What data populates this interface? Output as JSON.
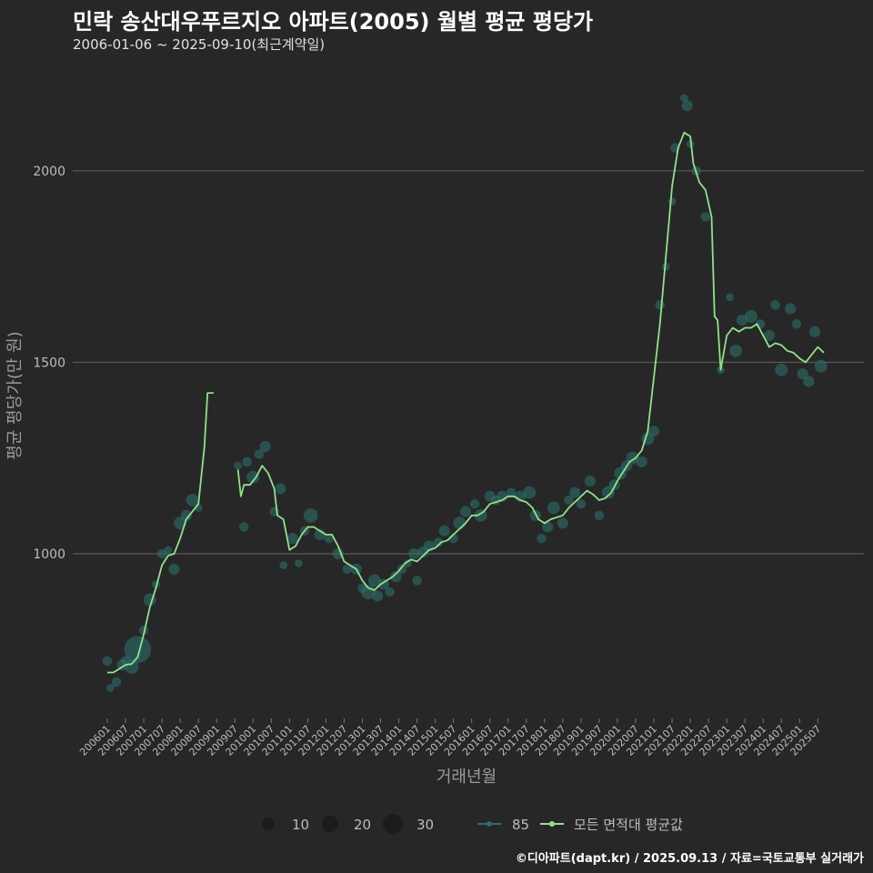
{
  "header": {
    "title": "민락 송산대우푸르지오 아파트(2005) 월별 평균 평당가",
    "subtitle": "2006-01-06 ~ 2025-09-10(최근계약일)"
  },
  "footer": {
    "credit": "©디아파트(dapt.kr) / 2025.09.13 / 자료=국토교통부 실거래가"
  },
  "colors": {
    "background": "#272727",
    "grid": "#555555",
    "line": "#8fe388",
    "points": "#2b6f6a"
  },
  "chart_data": {
    "type": "line",
    "xlabel": "거래년월",
    "ylabel": "평균 평당가(만 원)",
    "y_ticks": [
      1000,
      1500,
      2000
    ],
    "ylim": [
      570,
      2280
    ],
    "x_tick_labels": [
      "200601",
      "200607",
      "200701",
      "200707",
      "200801",
      "200807",
      "200901",
      "200907",
      "201001",
      "201007",
      "201101",
      "201107",
      "201201",
      "201207",
      "201301",
      "201307",
      "201401",
      "201407",
      "201501",
      "201507",
      "201601",
      "201607",
      "201701",
      "201707",
      "201801",
      "201807",
      "201901",
      "201907",
      "202001",
      "202007",
      "202101",
      "202107",
      "202201",
      "202207",
      "202301",
      "202307",
      "202401",
      "202407",
      "202501",
      "202507"
    ],
    "grid": true,
    "legend": {
      "size_title": "",
      "size_entries": [
        "10",
        "20",
        "30"
      ],
      "series_entries": [
        "85",
        "모든 면적대 평균값"
      ]
    },
    "series": [
      {
        "name": "모든 면적대 평균값",
        "segments": [
          [
            [
              "2006-01",
              690
            ],
            [
              "2006-03",
              690
            ],
            [
              "2006-05",
              700
            ],
            [
              "2006-07",
              710
            ],
            [
              "2006-09",
              712
            ],
            [
              "2006-11",
              730
            ],
            [
              "2007-01",
              790
            ],
            [
              "2007-03",
              860
            ],
            [
              "2007-05",
              910
            ],
            [
              "2007-07",
              970
            ],
            [
              "2007-09",
              995
            ],
            [
              "2007-11",
              1000
            ],
            [
              "2008-01",
              1040
            ],
            [
              "2008-03",
              1090
            ],
            [
              "2008-05",
              1110
            ],
            [
              "2008-07",
              1130
            ],
            [
              "2008-09",
              1280
            ],
            [
              "2008-10",
              1420
            ],
            [
              "2008-12",
              1420
            ]
          ],
          [
            [
              "2009-08",
              1220
            ],
            [
              "2009-09",
              1150
            ],
            [
              "2009-10",
              1180
            ],
            [
              "2009-12",
              1180
            ],
            [
              "2010-02",
              1200
            ],
            [
              "2010-04",
              1230
            ],
            [
              "2010-06",
              1210
            ],
            [
              "2010-08",
              1170
            ],
            [
              "2010-09",
              1100
            ],
            [
              "2010-11",
              1090
            ],
            [
              "2011-01",
              1010
            ],
            [
              "2011-03",
              1020
            ],
            [
              "2011-05",
              1050
            ],
            [
              "2011-07",
              1070
            ],
            [
              "2011-09",
              1070
            ],
            [
              "2011-11",
              1060
            ],
            [
              "2012-01",
              1050
            ],
            [
              "2012-03",
              1050
            ],
            [
              "2012-05",
              1020
            ],
            [
              "2012-07",
              980
            ],
            [
              "2012-09",
              970
            ],
            [
              "2012-11",
              960
            ],
            [
              "2013-01",
              930
            ],
            [
              "2013-03",
              910
            ],
            [
              "2013-05",
              905
            ],
            [
              "2013-07",
              920
            ],
            [
              "2013-09",
              930
            ],
            [
              "2013-11",
              940
            ],
            [
              "2014-01",
              955
            ],
            [
              "2014-03",
              975
            ],
            [
              "2014-05",
              985
            ],
            [
              "2014-07",
              980
            ],
            [
              "2014-09",
              995
            ],
            [
              "2014-11",
              1010
            ],
            [
              "2015-01",
              1015
            ],
            [
              "2015-03",
              1030
            ],
            [
              "2015-05",
              1035
            ],
            [
              "2015-07",
              1050
            ],
            [
              "2015-09",
              1065
            ],
            [
              "2015-11",
              1080
            ],
            [
              "2016-01",
              1100
            ],
            [
              "2016-03",
              1100
            ],
            [
              "2016-05",
              1110
            ],
            [
              "2016-07",
              1130
            ],
            [
              "2016-09",
              1135
            ],
            [
              "2016-11",
              1140
            ],
            [
              "2017-01",
              1150
            ],
            [
              "2017-03",
              1150
            ],
            [
              "2017-05",
              1140
            ],
            [
              "2017-07",
              1135
            ],
            [
              "2017-09",
              1120
            ],
            [
              "2017-11",
              1090
            ],
            [
              "2018-01",
              1080
            ],
            [
              "2018-03",
              1090
            ],
            [
              "2018-05",
              1095
            ],
            [
              "2018-07",
              1100
            ],
            [
              "2018-09",
              1120
            ],
            [
              "2018-11",
              1135
            ],
            [
              "2019-01",
              1150
            ],
            [
              "2019-03",
              1165
            ],
            [
              "2019-05",
              1155
            ],
            [
              "2019-07",
              1140
            ],
            [
              "2019-09",
              1145
            ],
            [
              "2019-11",
              1160
            ],
            [
              "2020-01",
              1190
            ],
            [
              "2020-03",
              1215
            ],
            [
              "2020-05",
              1240
            ],
            [
              "2020-07",
              1250
            ],
            [
              "2020-09",
              1270
            ],
            [
              "2020-11",
              1320
            ],
            [
              "2021-01",
              1460
            ],
            [
              "2021-03",
              1600
            ],
            [
              "2021-05",
              1780
            ],
            [
              "2021-07",
              1960
            ],
            [
              "2021-09",
              2060
            ],
            [
              "2021-11",
              2100
            ],
            [
              "2022-01",
              2090
            ],
            [
              "2022-02",
              2020
            ],
            [
              "2022-04",
              1970
            ],
            [
              "2022-06",
              1950
            ],
            [
              "2022-08",
              1880
            ],
            [
              "2022-09",
              1620
            ],
            [
              "2022-10",
              1610
            ],
            [
              "2022-11",
              1480
            ],
            [
              "2023-01",
              1570
            ],
            [
              "2023-03",
              1590
            ],
            [
              "2023-05",
              1580
            ],
            [
              "2023-07",
              1590
            ],
            [
              "2023-09",
              1590
            ],
            [
              "2023-11",
              1600
            ],
            [
              "2024-01",
              1570
            ],
            [
              "2024-03",
              1540
            ],
            [
              "2024-05",
              1550
            ],
            [
              "2024-07",
              1545
            ],
            [
              "2024-09",
              1530
            ],
            [
              "2024-11",
              1525
            ],
            [
              "2025-01",
              1510
            ],
            [
              "2025-03",
              1500
            ],
            [
              "2025-05",
              1520
            ],
            [
              "2025-07",
              1540
            ],
            [
              "2025-09",
              1525
            ]
          ]
        ]
      },
      {
        "name": "85",
        "points": [
          [
            "2006-01",
            720,
            12
          ],
          [
            "2006-02",
            650,
            10
          ],
          [
            "2006-04",
            665,
            12
          ],
          [
            "2006-06",
            710,
            14
          ],
          [
            "2006-07",
            720,
            12
          ],
          [
            "2006-09",
            705,
            18
          ],
          [
            "2006-11",
            750,
            34
          ],
          [
            "2007-01",
            800,
            12
          ],
          [
            "2007-03",
            880,
            16
          ],
          [
            "2007-05",
            920,
            10
          ],
          [
            "2007-07",
            1000,
            12
          ],
          [
            "2007-09",
            1010,
            10
          ],
          [
            "2007-11",
            960,
            14
          ],
          [
            "2008-01",
            1080,
            16
          ],
          [
            "2008-03",
            1100,
            14
          ],
          [
            "2008-05",
            1140,
            16
          ],
          [
            "2008-07",
            1120,
            10
          ],
          [
            "2009-08",
            1230,
            10
          ],
          [
            "2009-10",
            1070,
            12
          ],
          [
            "2009-11",
            1240,
            12
          ],
          [
            "2010-01",
            1200,
            16
          ],
          [
            "2010-03",
            1260,
            12
          ],
          [
            "2010-05",
            1280,
            14
          ],
          [
            "2010-08",
            1110,
            12
          ],
          [
            "2010-10",
            1170,
            14
          ],
          [
            "2010-11",
            970,
            10
          ],
          [
            "2011-02",
            1040,
            14
          ],
          [
            "2011-04",
            975,
            10
          ],
          [
            "2011-06",
            1060,
            12
          ],
          [
            "2011-08",
            1100,
            18
          ],
          [
            "2011-11",
            1050,
            14
          ],
          [
            "2012-02",
            1040,
            12
          ],
          [
            "2012-05",
            1000,
            14
          ],
          [
            "2012-08",
            960,
            12
          ],
          [
            "2012-11",
            960,
            14
          ],
          [
            "2013-01",
            910,
            12
          ],
          [
            "2013-03",
            900,
            18
          ],
          [
            "2013-05",
            930,
            16
          ],
          [
            "2013-06",
            890,
            14
          ],
          [
            "2013-08",
            920,
            14
          ],
          [
            "2013-10",
            900,
            12
          ],
          [
            "2013-12",
            940,
            14
          ],
          [
            "2014-02",
            960,
            12
          ],
          [
            "2014-04",
            975,
            10
          ],
          [
            "2014-06",
            1000,
            14
          ],
          [
            "2014-07",
            930,
            12
          ],
          [
            "2014-09",
            1005,
            14
          ],
          [
            "2014-11",
            1020,
            14
          ],
          [
            "2015-02",
            1030,
            12
          ],
          [
            "2015-04",
            1060,
            14
          ],
          [
            "2015-07",
            1040,
            12
          ],
          [
            "2015-09",
            1080,
            16
          ],
          [
            "2015-11",
            1110,
            14
          ],
          [
            "2016-02",
            1130,
            12
          ],
          [
            "2016-04",
            1100,
            16
          ],
          [
            "2016-07",
            1150,
            14
          ],
          [
            "2016-09",
            1140,
            12
          ],
          [
            "2016-11",
            1150,
            14
          ],
          [
            "2017-02",
            1160,
            12
          ],
          [
            "2017-05",
            1150,
            14
          ],
          [
            "2017-08",
            1160,
            16
          ],
          [
            "2017-10",
            1100,
            14
          ],
          [
            "2017-12",
            1040,
            12
          ],
          [
            "2018-02",
            1070,
            14
          ],
          [
            "2018-04",
            1120,
            16
          ],
          [
            "2018-07",
            1080,
            14
          ],
          [
            "2018-09",
            1140,
            12
          ],
          [
            "2018-11",
            1160,
            14
          ],
          [
            "2019-01",
            1130,
            12
          ],
          [
            "2019-04",
            1190,
            14
          ],
          [
            "2019-07",
            1100,
            12
          ],
          [
            "2019-10",
            1160,
            16
          ],
          [
            "2019-12",
            1180,
            14
          ],
          [
            "2020-02",
            1210,
            16
          ],
          [
            "2020-04",
            1230,
            14
          ],
          [
            "2020-06",
            1250,
            16
          ],
          [
            "2020-09",
            1240,
            14
          ],
          [
            "2020-11",
            1300,
            16
          ],
          [
            "2021-01",
            1320,
            14
          ],
          [
            "2021-03",
            1650,
            12
          ],
          [
            "2021-05",
            1750,
            10
          ],
          [
            "2021-07",
            1920,
            10
          ],
          [
            "2021-08",
            2060,
            12
          ],
          [
            "2021-11",
            2190,
            10
          ],
          [
            "2021-12",
            2170,
            14
          ],
          [
            "2022-01",
            2070,
            10
          ],
          [
            "2022-03",
            2000,
            12
          ],
          [
            "2022-06",
            1880,
            12
          ],
          [
            "2022-11",
            1480,
            10
          ],
          [
            "2023-02",
            1670,
            10
          ],
          [
            "2023-04",
            1530,
            16
          ],
          [
            "2023-06",
            1610,
            14
          ],
          [
            "2023-09",
            1620,
            16
          ],
          [
            "2023-12",
            1600,
            12
          ],
          [
            "2024-03",
            1570,
            14
          ],
          [
            "2024-05",
            1650,
            12
          ],
          [
            "2024-07",
            1480,
            16
          ],
          [
            "2024-10",
            1640,
            14
          ],
          [
            "2024-12",
            1600,
            12
          ],
          [
            "2025-02",
            1470,
            14
          ],
          [
            "2025-04",
            1450,
            14
          ],
          [
            "2025-06",
            1580,
            14
          ],
          [
            "2025-08",
            1490,
            16
          ]
        ]
      }
    ]
  }
}
